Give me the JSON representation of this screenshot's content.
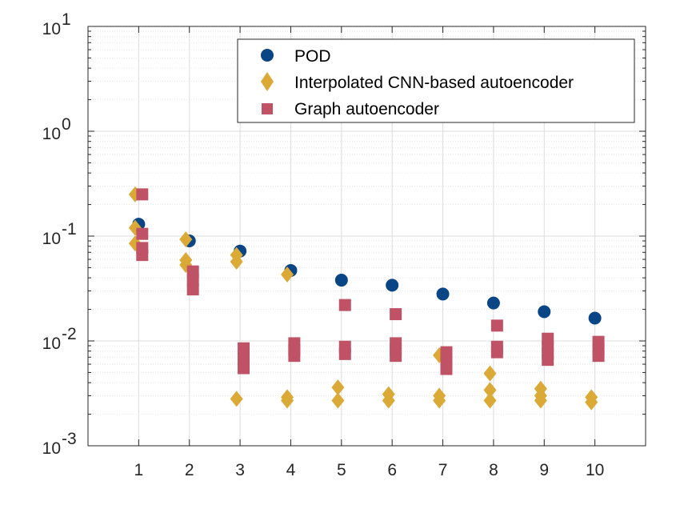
{
  "chart_data": {
    "type": "scatter",
    "title": "",
    "xlabel": "",
    "ylabel": "",
    "yscale": "log",
    "ylim": [
      0.001,
      10
    ],
    "xlim": [
      0,
      11
    ],
    "xticks": [
      1,
      2,
      3,
      4,
      5,
      6,
      7,
      8,
      9,
      10
    ],
    "xtick_labels": [
      "1",
      "2",
      "3",
      "4",
      "5",
      "6",
      "7",
      "8",
      "9",
      "10"
    ],
    "yticks": [
      {
        "value": 0.001,
        "base": "10",
        "exp": "-3"
      },
      {
        "value": 0.01,
        "base": "10",
        "exp": "-2"
      },
      {
        "value": 0.1,
        "base": "10",
        "exp": "-1"
      },
      {
        "value": 1,
        "base": "10",
        "exp": "0"
      },
      {
        "value": 10,
        "base": "10",
        "exp": "1"
      }
    ],
    "grid": true,
    "legend_position": "top-right",
    "series": [
      {
        "name": "POD",
        "marker": "circle",
        "color": "#0a4585",
        "points": [
          [
            1,
            0.13
          ],
          [
            2,
            0.09
          ],
          [
            3,
            0.072
          ],
          [
            4,
            0.047
          ],
          [
            5,
            0.038
          ],
          [
            6,
            0.034
          ],
          [
            7,
            0.028
          ],
          [
            8,
            0.023
          ],
          [
            9,
            0.019
          ],
          [
            10,
            0.0165
          ]
        ]
      },
      {
        "name": "Interpolated CNN-based autoencoder",
        "marker": "diamond",
        "color": "#dba935",
        "points": [
          [
            0.93,
            0.25
          ],
          [
            0.93,
            0.12
          ],
          [
            0.93,
            0.085
          ],
          [
            1.93,
            0.093
          ],
          [
            1.93,
            0.059
          ],
          [
            1.93,
            0.053
          ],
          [
            2.93,
            0.066
          ],
          [
            2.93,
            0.057
          ],
          [
            2.93,
            0.0028
          ],
          [
            3.93,
            0.043
          ],
          [
            3.93,
            0.0029
          ],
          [
            3.93,
            0.0027
          ],
          [
            4.93,
            0.0036
          ],
          [
            4.93,
            0.0027
          ],
          [
            5.93,
            0.0031
          ],
          [
            5.93,
            0.0027
          ],
          [
            6.93,
            0.0073
          ],
          [
            6.93,
            0.003
          ],
          [
            6.93,
            0.0027
          ],
          [
            7.93,
            0.0049
          ],
          [
            7.93,
            0.0034
          ],
          [
            7.93,
            0.0027
          ],
          [
            8.93,
            0.0035
          ],
          [
            8.93,
            0.003
          ],
          [
            8.93,
            0.0027
          ],
          [
            9.93,
            0.0029
          ],
          [
            9.93,
            0.0026
          ]
        ]
      },
      {
        "name": "Graph autoencoder",
        "marker": "square",
        "color": "#c05266",
        "points": [
          [
            1.07,
            0.25
          ],
          [
            1.07,
            0.105
          ],
          [
            1.07,
            0.077
          ],
          [
            1.07,
            0.066
          ],
          [
            2.07,
            0.046
          ],
          [
            2.07,
            0.038
          ],
          [
            2.07,
            0.031
          ],
          [
            3.07,
            0.0085
          ],
          [
            3.07,
            0.0068
          ],
          [
            3.07,
            0.0055
          ],
          [
            4.07,
            0.0095
          ],
          [
            4.07,
            0.0082
          ],
          [
            4.07,
            0.0072
          ],
          [
            5.07,
            0.022
          ],
          [
            5.07,
            0.0088
          ],
          [
            5.07,
            0.0075
          ],
          [
            6.07,
            0.018
          ],
          [
            6.07,
            0.0095
          ],
          [
            6.07,
            0.0082
          ],
          [
            6.07,
            0.0072
          ],
          [
            7.07,
            0.0078
          ],
          [
            7.07,
            0.0064
          ],
          [
            7.07,
            0.0054
          ],
          [
            8.07,
            0.014
          ],
          [
            8.07,
            0.0088
          ],
          [
            8.07,
            0.0078
          ],
          [
            9.07,
            0.0105
          ],
          [
            9.07,
            0.0088
          ],
          [
            9.07,
            0.0076
          ],
          [
            9.07,
            0.0066
          ],
          [
            10.07,
            0.0098
          ],
          [
            10.07,
            0.0083
          ],
          [
            10.07,
            0.0072
          ]
        ]
      }
    ]
  }
}
